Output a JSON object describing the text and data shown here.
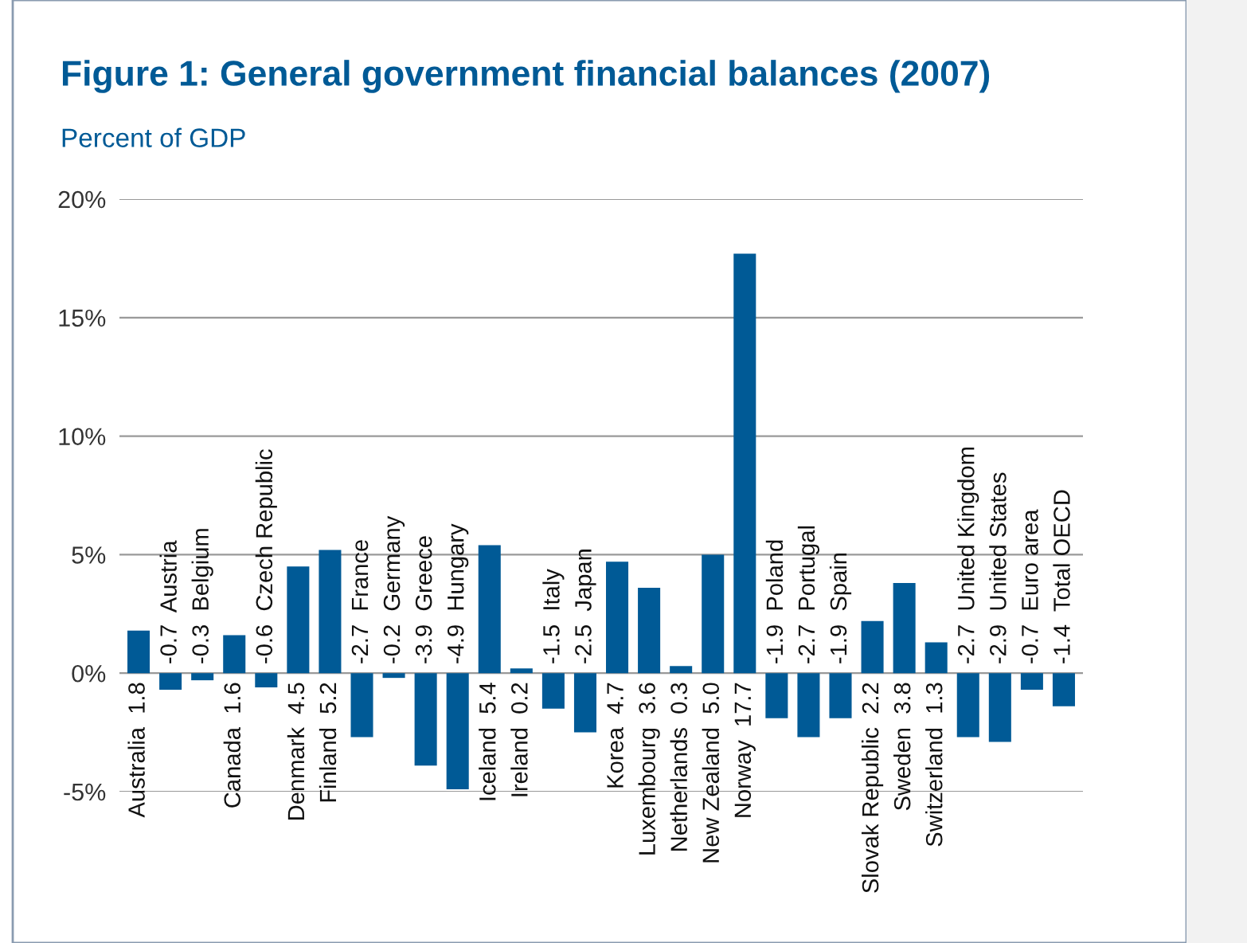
{
  "chart_data": {
    "type": "bar",
    "title": "Figure 1: General government financial balances (2007)",
    "subtitle": "Percent of GDP",
    "categories": [
      "Australia",
      "Austria",
      "Belgium",
      "Canada",
      "Czech Republic",
      "Denmark",
      "Finland",
      "France",
      "Germany",
      "Greece",
      "Hungary",
      "Iceland",
      "Ireland",
      "Italy",
      "Japan",
      "Korea",
      "Luxembourg",
      "Netherlands",
      "New Zealand",
      "Norway",
      "Poland",
      "Portugal",
      "Spain",
      "Slovak Republic",
      "Sweden",
      "Switzerland",
      "United Kingdom",
      "United States",
      "Euro area",
      "Total OECD"
    ],
    "values": [
      1.8,
      -0.7,
      -0.3,
      1.6,
      -0.6,
      4.5,
      5.2,
      -2.7,
      -0.2,
      -3.9,
      -4.9,
      5.4,
      0.2,
      -1.5,
      -2.5,
      4.7,
      3.6,
      0.3,
      5.0,
      17.7,
      -1.9,
      -2.7,
      -1.9,
      2.2,
      3.8,
      1.3,
      -2.7,
      -2.9,
      -0.7,
      -1.4
    ],
    "value_labels": [
      "1.8",
      "-0.7",
      "-0.3",
      "1.6",
      "-0.6",
      "4.5",
      "5.2",
      "-2.7",
      "-0.2",
      "-3.9",
      "-4.9",
      "5.4",
      "0.2",
      "-1.5",
      "-2.5",
      "4.7",
      "3.6",
      "0.3",
      "5.0",
      "17.7",
      "-1.9",
      "-2.7",
      "-1.9",
      "2.2",
      "3.8",
      "1.3",
      "-2.7",
      "-2.9",
      "-0.7",
      "-1.4"
    ],
    "color": "#005a96",
    "ylim": [
      -5,
      20
    ],
    "yticks": [
      {
        "value": -5,
        "label": "-5%"
      },
      {
        "value": 0,
        "label": "0%"
      },
      {
        "value": 5,
        "label": "5%"
      },
      {
        "value": 10,
        "label": "10%"
      },
      {
        "value": 15,
        "label": "15%"
      },
      {
        "value": 20,
        "label": "20%"
      }
    ],
    "grid": "y",
    "tick_labels": "y"
  }
}
